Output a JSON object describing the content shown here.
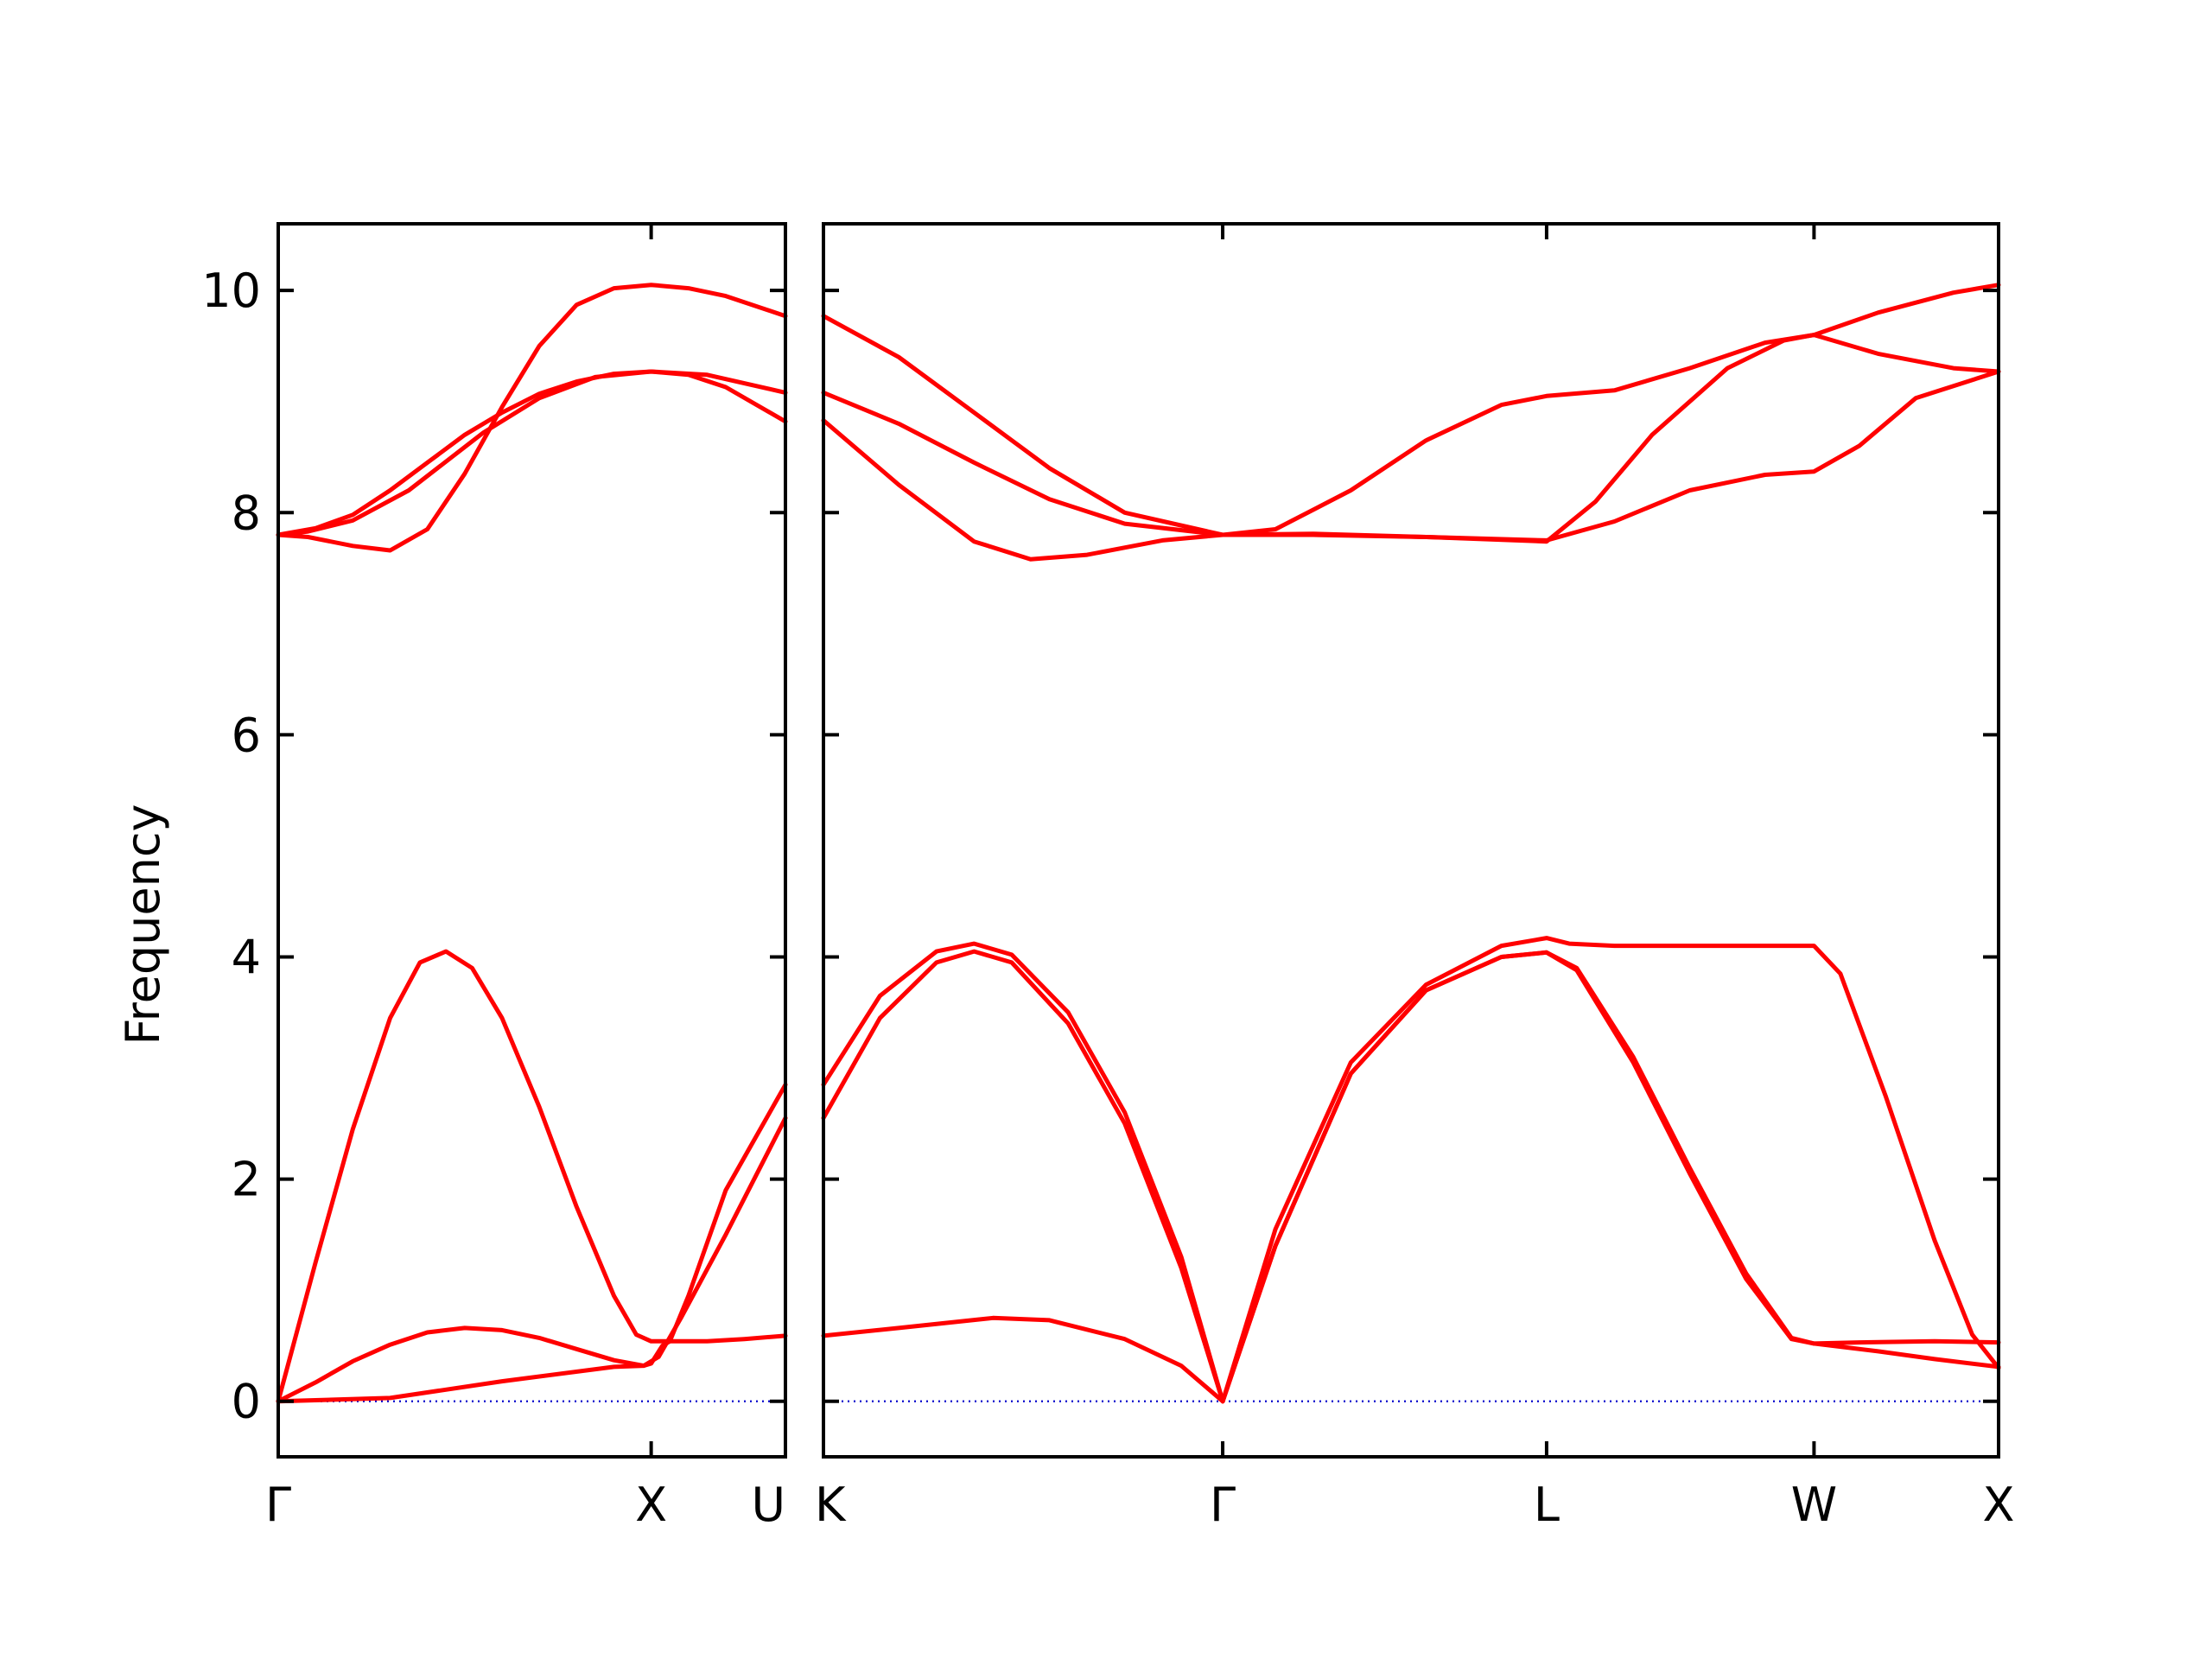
{
  "chart_data": {
    "type": "line",
    "ylabel": "Frequency",
    "ylim": [
      -0.5,
      10.6
    ],
    "yticks": [
      0,
      2,
      4,
      6,
      8,
      10
    ],
    "grid": false,
    "legend": "none",
    "colors": {
      "bands": "#ff0000",
      "zero_line": "#0000cc",
      "frame": "#000000"
    },
    "zero_line": {
      "y": 0,
      "style": "dotted"
    },
    "panels": [
      {
        "name": "Γ-X-U",
        "xlim": [
          0,
          1.36
        ],
        "ticks": [
          {
            "x": 0,
            "label": "Γ"
          },
          {
            "x": 1.0,
            "label": "X"
          },
          {
            "x": 1.36,
            "label": "U"
          }
        ],
        "series": [
          {
            "values": [
              [
                0,
                0
              ],
              [
                0.1,
                0.17
              ],
              [
                0.2,
                0.36
              ],
              [
                0.3,
                0.51
              ],
              [
                0.4,
                0.62
              ],
              [
                0.5,
                0.66
              ],
              [
                0.6,
                0.64
              ],
              [
                0.7,
                0.57
              ],
              [
                0.8,
                0.47
              ],
              [
                0.9,
                0.37
              ],
              [
                0.98,
                0.32
              ],
              [
                1.0,
                0.34
              ],
              [
                1.03,
                0.5
              ],
              [
                1.05,
                0.54
              ],
              [
                1.15,
                0.54
              ],
              [
                1.25,
                0.56
              ],
              [
                1.36,
                0.59
              ]
            ]
          },
          {
            "values": [
              [
                0,
                0
              ],
              [
                0.1,
                1.25
              ],
              [
                0.2,
                2.45
              ],
              [
                0.3,
                3.45
              ],
              [
                0.38,
                3.95
              ],
              [
                0.45,
                4.05
              ],
              [
                0.52,
                3.9
              ],
              [
                0.6,
                3.45
              ],
              [
                0.7,
                2.65
              ],
              [
                0.8,
                1.75
              ],
              [
                0.9,
                0.95
              ],
              [
                0.96,
                0.6
              ],
              [
                1.0,
                0.54
              ],
              [
                1.05,
                0.54
              ],
              [
                1.1,
                0.95
              ],
              [
                1.2,
                1.9
              ],
              [
                1.36,
                2.85
              ]
            ]
          },
          {
            "values": [
              [
                0,
                0
              ],
              [
                0.3,
                0.03
              ],
              [
                0.6,
                0.18
              ],
              [
                0.9,
                0.31
              ],
              [
                0.98,
                0.32
              ],
              [
                1.02,
                0.4
              ],
              [
                1.08,
                0.75
              ],
              [
                1.2,
                1.5
              ],
              [
                1.36,
                2.55
              ]
            ]
          },
          {
            "values": [
              [
                0,
                7.8
              ],
              [
                0.08,
                7.78
              ],
              [
                0.2,
                7.7
              ],
              [
                0.3,
                7.66
              ],
              [
                0.4,
                7.85
              ],
              [
                0.5,
                8.35
              ],
              [
                0.6,
                8.95
              ],
              [
                0.7,
                9.5
              ],
              [
                0.8,
                9.87
              ],
              [
                0.9,
                10.02
              ],
              [
                1.0,
                10.05
              ],
              [
                1.1,
                10.02
              ],
              [
                1.2,
                9.95
              ],
              [
                1.36,
                9.77
              ]
            ]
          },
          {
            "values": [
              [
                0,
                7.8
              ],
              [
                0.1,
                7.86
              ],
              [
                0.2,
                7.98
              ],
              [
                0.3,
                8.2
              ],
              [
                0.4,
                8.45
              ],
              [
                0.5,
                8.7
              ],
              [
                0.6,
                8.9
              ],
              [
                0.7,
                9.07
              ],
              [
                0.8,
                9.18
              ],
              [
                0.9,
                9.25
              ],
              [
                1.0,
                9.27
              ],
              [
                1.1,
                9.24
              ],
              [
                1.2,
                9.13
              ],
              [
                1.36,
                8.82
              ]
            ]
          },
          {
            "values": [
              [
                0,
                7.8
              ],
              [
                0.08,
                7.83
              ],
              [
                0.2,
                7.93
              ],
              [
                0.35,
                8.2
              ],
              [
                0.55,
                8.72
              ],
              [
                0.7,
                9.03
              ],
              [
                0.85,
                9.22
              ],
              [
                1.0,
                9.27
              ],
              [
                1.15,
                9.24
              ],
              [
                1.36,
                9.08
              ]
            ]
          }
        ]
      },
      {
        "name": "K-Γ-L-W-X",
        "xlim": [
          0,
          3.12
        ],
        "ticks": [
          {
            "x": 0,
            "label": "K"
          },
          {
            "x": 1.06,
            "label": "Γ"
          },
          {
            "x": 1.92,
            "label": "L"
          },
          {
            "x": 2.63,
            "label": "W"
          },
          {
            "x": 3.12,
            "label": "X"
          }
        ],
        "series": [
          {
            "values": [
              [
                0,
                0.59
              ],
              [
                0.2,
                0.66
              ],
              [
                0.45,
                0.75
              ],
              [
                0.6,
                0.73
              ],
              [
                0.8,
                0.56
              ],
              [
                0.95,
                0.32
              ],
              [
                1.06,
                0
              ]
            ]
          },
          {
            "values": [
              [
                0,
                2.55
              ],
              [
                0.15,
                3.45
              ],
              [
                0.3,
                3.95
              ],
              [
                0.4,
                4.05
              ],
              [
                0.5,
                3.95
              ],
              [
                0.65,
                3.4
              ],
              [
                0.8,
                2.5
              ],
              [
                0.95,
                1.2
              ],
              [
                1.06,
                0
              ]
            ]
          },
          {
            "values": [
              [
                0,
                2.85
              ],
              [
                0.15,
                3.65
              ],
              [
                0.3,
                4.05
              ],
              [
                0.4,
                4.12
              ],
              [
                0.5,
                4.02
              ],
              [
                0.65,
                3.5
              ],
              [
                0.8,
                2.6
              ],
              [
                0.95,
                1.3
              ],
              [
                1.06,
                0
              ]
            ]
          },
          {
            "values": [
              [
                1.06,
                0
              ],
              [
                1.2,
                1.55
              ],
              [
                1.4,
                3.05
              ],
              [
                1.6,
                3.75
              ],
              [
                1.8,
                4.1
              ],
              [
                1.92,
                4.17
              ],
              [
                1.98,
                4.12
              ],
              [
                2.1,
                4.1
              ],
              [
                2.3,
                4.1
              ],
              [
                2.5,
                4.1
              ],
              [
                2.63,
                4.1
              ],
              [
                2.7,
                3.85
              ],
              [
                2.82,
                2.75
              ],
              [
                2.95,
                1.45
              ],
              [
                3.05,
                0.6
              ],
              [
                3.12,
                0.3
              ]
            ]
          },
          {
            "values": [
              [
                1.06,
                0
              ],
              [
                1.2,
                1.4
              ],
              [
                1.4,
                2.95
              ],
              [
                1.6,
                3.7
              ],
              [
                1.8,
                4.0
              ],
              [
                1.92,
                4.04
              ],
              [
                2.0,
                3.9
              ],
              [
                2.15,
                3.1
              ],
              [
                2.3,
                2.1
              ],
              [
                2.45,
                1.15
              ],
              [
                2.57,
                0.57
              ],
              [
                2.63,
                0.52
              ],
              [
                2.75,
                0.53
              ],
              [
                2.95,
                0.54
              ],
              [
                3.12,
                0.53
              ]
            ]
          },
          {
            "values": [
              [
                1.06,
                0
              ],
              [
                1.2,
                1.4
              ],
              [
                1.4,
                2.95
              ],
              [
                1.6,
                3.7
              ],
              [
                1.8,
                4.0
              ],
              [
                1.92,
                4.04
              ],
              [
                2.0,
                3.88
              ],
              [
                2.15,
                3.05
              ],
              [
                2.3,
                2.05
              ],
              [
                2.45,
                1.1
              ],
              [
                2.57,
                0.56
              ],
              [
                2.63,
                0.52
              ],
              [
                2.8,
                0.45
              ],
              [
                2.95,
                0.38
              ],
              [
                3.12,
                0.31
              ]
            ]
          },
          {
            "values": [
              [
                0,
                8.83
              ],
              [
                0.2,
                8.25
              ],
              [
                0.4,
                7.74
              ],
              [
                0.55,
                7.58
              ],
              [
                0.7,
                7.62
              ],
              [
                0.9,
                7.75
              ],
              [
                1.06,
                7.8
              ],
              [
                1.3,
                7.8
              ],
              [
                1.6,
                7.78
              ],
              [
                1.92,
                7.75
              ],
              [
                2.1,
                7.92
              ],
              [
                2.3,
                8.2
              ],
              [
                2.5,
                8.34
              ],
              [
                2.63,
                8.37
              ],
              [
                2.75,
                8.6
              ],
              [
                2.9,
                9.03
              ],
              [
                3.12,
                9.27
              ]
            ]
          },
          {
            "values": [
              [
                0,
                9.08
              ],
              [
                0.2,
                8.8
              ],
              [
                0.4,
                8.45
              ],
              [
                0.6,
                8.12
              ],
              [
                0.8,
                7.9
              ],
              [
                1.06,
                7.8
              ],
              [
                1.3,
                7.81
              ],
              [
                1.6,
                7.78
              ],
              [
                1.92,
                7.74
              ],
              [
                2.05,
                8.1
              ],
              [
                2.2,
                8.7
              ],
              [
                2.4,
                9.3
              ],
              [
                2.55,
                9.55
              ],
              [
                2.63,
                9.6
              ],
              [
                2.8,
                9.43
              ],
              [
                3.0,
                9.3
              ],
              [
                3.12,
                9.27
              ]
            ]
          },
          {
            "values": [
              [
                0,
                9.77
              ],
              [
                0.2,
                9.4
              ],
              [
                0.4,
                8.9
              ],
              [
                0.6,
                8.4
              ],
              [
                0.8,
                8.0
              ],
              [
                1.06,
                7.8
              ],
              [
                1.2,
                7.85
              ],
              [
                1.4,
                8.2
              ],
              [
                1.6,
                8.65
              ],
              [
                1.8,
                8.97
              ],
              [
                1.92,
                9.05
              ],
              [
                2.1,
                9.1
              ],
              [
                2.3,
                9.3
              ],
              [
                2.5,
                9.53
              ],
              [
                2.63,
                9.6
              ],
              [
                2.8,
                9.8
              ],
              [
                3.0,
                9.98
              ],
              [
                3.12,
                10.05
              ]
            ]
          }
        ]
      }
    ]
  }
}
